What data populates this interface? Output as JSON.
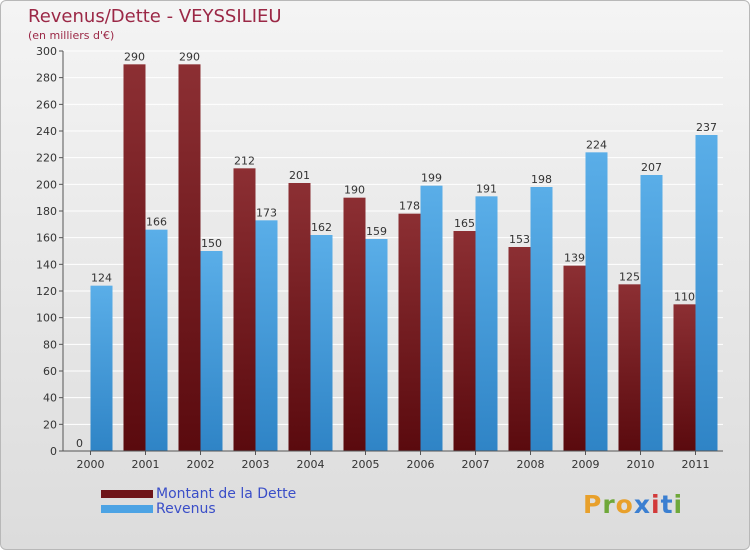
{
  "title": "Revenus/Dette - VEYSSILIEU",
  "subtitle": "(en milliers d'€)",
  "logo_text": "Proxiti",
  "logo_colors": [
    "#e8a02b",
    "#6fa83a",
    "#e8a02b",
    "#3b7fd1",
    "#d23a3a",
    "#3b7fd1",
    "#6fa83a"
  ],
  "colors": {
    "title": "#9b2846",
    "dette": "#7b1f23",
    "revenus": "#4ca3e4",
    "legend_text": "#3a4ec8"
  },
  "legend": [
    {
      "label": "Montant de la Dette",
      "color": "#6e1418"
    },
    {
      "label": "Revenus",
      "color": "#4ca3e4"
    }
  ],
  "chart_data": {
    "type": "bar",
    "title": "Revenus/Dette - VEYSSILIEU",
    "subtitle": "(en milliers d'€)",
    "categories": [
      "2000",
      "2001",
      "2002",
      "2003",
      "2004",
      "2005",
      "2006",
      "2007",
      "2008",
      "2009",
      "2010",
      "2011"
    ],
    "series": [
      {
        "name": "Montant de la Dette",
        "values": [
          0,
          290,
          290,
          212,
          201,
          190,
          178,
          165,
          153,
          139,
          125,
          110
        ]
      },
      {
        "name": "Revenus",
        "values": [
          124,
          166,
          150,
          173,
          162,
          159,
          199,
          191,
          198,
          224,
          207,
          237
        ]
      }
    ],
    "ylim": [
      0,
      300
    ],
    "yticks": [
      0,
      20,
      40,
      60,
      80,
      100,
      120,
      140,
      160,
      180,
      200,
      220,
      240,
      260,
      280,
      300
    ],
    "grid": true,
    "legend_position": "bottom-left"
  }
}
